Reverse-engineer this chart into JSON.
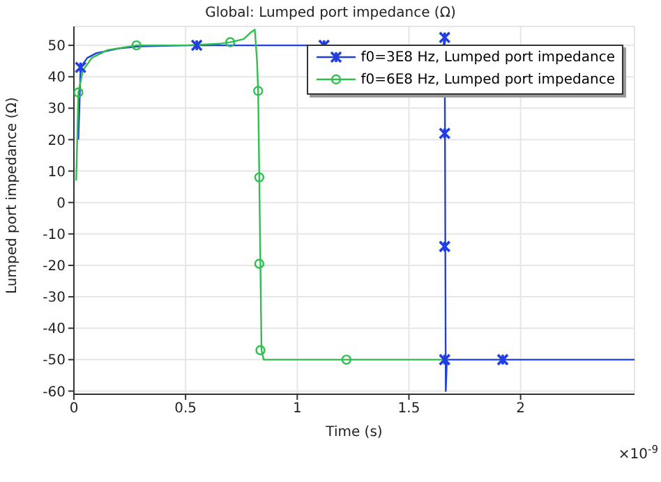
{
  "chart_data": {
    "type": "line",
    "title": "Global: Lumped port impedance (Ω)",
    "xlabel": "Time (s)",
    "ylabel": "Lumped port impedance (Ω)",
    "xlim": [
      0,
      2.51
    ],
    "xticks": [
      0,
      0.5,
      1,
      1.5,
      2
    ],
    "ylim": [
      -61,
      56
    ],
    "yticks": [
      -60,
      -50,
      -40,
      -30,
      -20,
      -10,
      0,
      10,
      20,
      30,
      40,
      50
    ],
    "grid": true,
    "legend": "top right",
    "line_style": "solid",
    "annotations": [
      "×10$^{-9}$"
    ],
    "series": [
      {
        "name": "f0=3E8 Hz, Lumped port impedance",
        "color": "#1f3fe0",
        "marker": "none",
        "x": [
          0.02,
          0.03,
          0.06,
          0.1,
          0.2,
          0.3,
          0.5,
          1.655,
          1.66,
          1.665,
          1.67,
          2.51
        ],
        "values": [
          20,
          43,
          46,
          47.5,
          49,
          49.7,
          50,
          50,
          53,
          -60,
          -50,
          -50
        ]
      },
      {
        "name": "f0=6E8 Hz, Lumped port impedance",
        "color": "#2fbf4f",
        "marker": "none",
        "x": [
          0.01,
          0.015,
          0.02,
          0.04,
          0.08,
          0.15,
          0.28,
          0.5,
          0.65,
          0.7,
          0.76,
          0.79,
          0.81,
          0.82,
          0.825,
          0.83,
          0.835,
          0.84,
          0.85,
          1.66
        ],
        "values": [
          7,
          20,
          35,
          42,
          46,
          48.5,
          50,
          50,
          50.5,
          51,
          52,
          54,
          55,
          45,
          35,
          8,
          -20,
          -47,
          -50,
          -50
        ]
      },
      {
        "type": "scatter",
        "color": "#1f3fe0",
        "marker": "cross",
        "x": [
          0.03,
          0.55,
          1.12,
          1.66,
          1.66,
          1.66,
          1.66,
          1.92
        ],
        "values": [
          43,
          50,
          50,
          52.5,
          22,
          -14,
          -50,
          -50
        ]
      },
      {
        "type": "scatter",
        "color": "#2fbf4f",
        "marker": "circle",
        "x": [
          0.02,
          0.28,
          0.7,
          0.825,
          0.83,
          0.83,
          0.835,
          1.22
        ],
        "values": [
          35,
          50,
          51,
          35.5,
          8,
          -19.5,
          -47,
          -50
        ]
      }
    ]
  }
}
